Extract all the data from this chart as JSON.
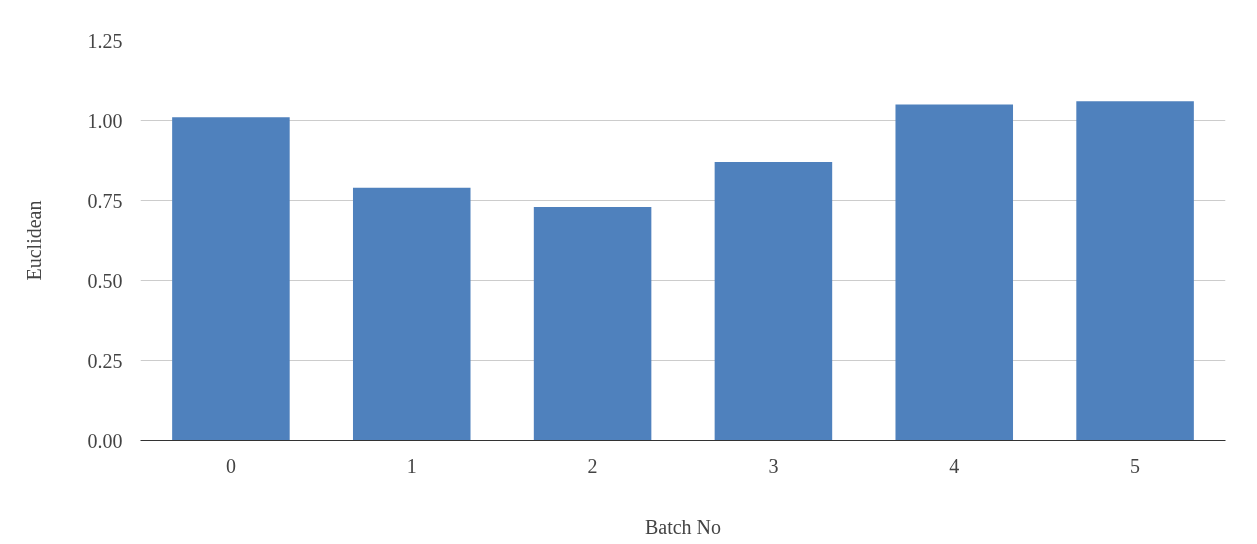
{
  "chart_data": {
    "type": "bar",
    "xlabel": "Batch No",
    "ylabel": "Euclidean",
    "categories": [
      "0",
      "1",
      "2",
      "3",
      "4",
      "5"
    ],
    "values": [
      1.01,
      0.79,
      0.73,
      0.87,
      1.05,
      1.06
    ],
    "color": "#4f81bd",
    "ylim": [
      0,
      1.25
    ],
    "yticks": [
      {
        "value": 0,
        "label": "0.00"
      },
      {
        "value": 0.25,
        "label": "0.25"
      },
      {
        "value": 0.5,
        "label": "0.50"
      },
      {
        "value": 0.75,
        "label": "0.75"
      },
      {
        "value": 1,
        "label": "1.00"
      },
      {
        "value": 1.25,
        "label": "1.25"
      }
    ],
    "grid": "y"
  }
}
